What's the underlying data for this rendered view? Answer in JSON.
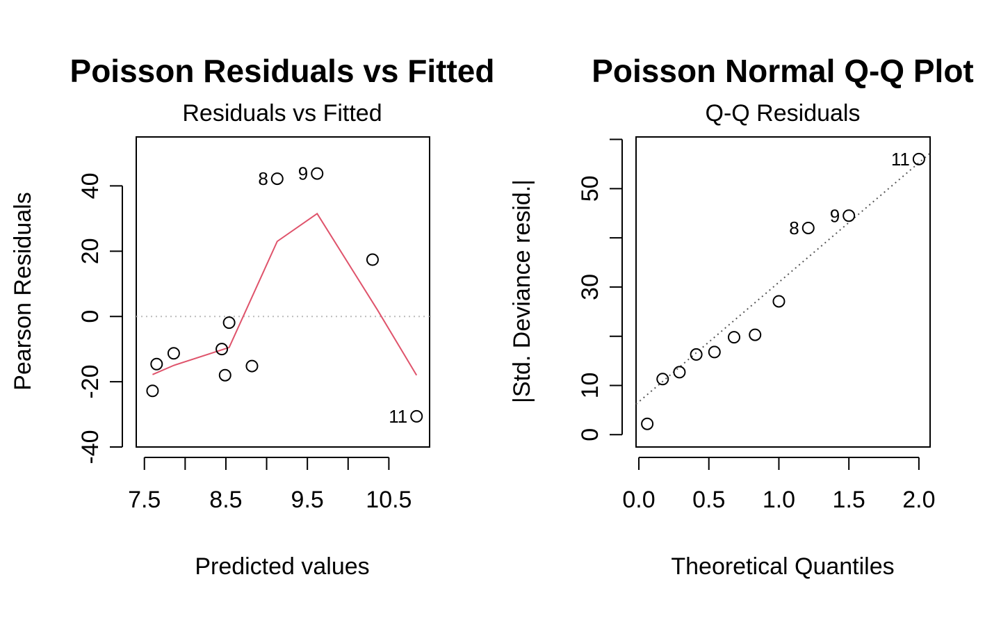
{
  "chart_data": [
    {
      "type": "scatter",
      "title": "Poisson Residuals vs Fitted",
      "subtitle": "Residuals vs Fitted",
      "xlabel": "Predicted values",
      "ylabel": "Pearson Residuals",
      "xlim": [
        7.4,
        11.0
      ],
      "ylim": [
        -40,
        55
      ],
      "xticks": [
        7.5,
        8.0,
        8.5,
        9.0,
        9.5,
        10.0,
        10.5
      ],
      "xtick_labels": [
        "7.5",
        "",
        "8.5",
        "",
        "9.5",
        "",
        "10.5"
      ],
      "yticks": [
        -40,
        -20,
        0,
        20,
        40
      ],
      "ytick_labels": [
        "-40",
        "-20",
        "0",
        "20",
        "40"
      ],
      "grid": false,
      "reference_line": {
        "y": 0,
        "style": "dotted",
        "color": "#bbbbbb"
      },
      "points": [
        {
          "x": 7.6,
          "y": -22.8,
          "label": ""
        },
        {
          "x": 7.65,
          "y": -14.6,
          "label": ""
        },
        {
          "x": 7.86,
          "y": -11.3,
          "label": ""
        },
        {
          "x": 8.45,
          "y": -10.0,
          "label": ""
        },
        {
          "x": 8.49,
          "y": -18.0,
          "label": ""
        },
        {
          "x": 8.54,
          "y": -1.9,
          "label": ""
        },
        {
          "x": 8.82,
          "y": -15.2,
          "label": ""
        },
        {
          "x": 9.13,
          "y": 42.2,
          "label": "8"
        },
        {
          "x": 9.62,
          "y": 43.8,
          "label": "9"
        },
        {
          "x": 10.3,
          "y": 17.4,
          "label": ""
        },
        {
          "x": 10.84,
          "y": -30.6,
          "label": "11"
        }
      ],
      "smooth_line": {
        "color": "#DF536B",
        "x": [
          7.6,
          7.86,
          8.54,
          9.13,
          9.62,
          10.36,
          10.84
        ],
        "y": [
          -17.8,
          -15.0,
          -9.5,
          23.0,
          31.5,
          2.0,
          -18.0
        ]
      }
    },
    {
      "type": "scatter",
      "title": "Poisson Normal Q-Q Plot",
      "subtitle": "Q-Q Residuals",
      "xlabel": "Theoretical Quantiles",
      "ylabel": "|Std. Deviance resid.|",
      "xlim": [
        -0.02,
        2.08
      ],
      "ylim": [
        -2.5,
        60.5
      ],
      "xticks": [
        0.0,
        0.5,
        1.0,
        1.5,
        2.0
      ],
      "xtick_labels": [
        "0.0",
        "0.5",
        "1.0",
        "1.5",
        "2.0"
      ],
      "yticks": [
        0,
        10,
        20,
        30,
        40,
        50,
        60
      ],
      "ytick_labels": [
        "0",
        "10",
        "",
        "30",
        "",
        "50",
        ""
      ],
      "grid": false,
      "reference_line": {
        "x": [
          -0.02,
          2.08
        ],
        "y": [
          6.2,
          57.2
        ],
        "style": "dotted",
        "color": "#555555"
      },
      "points": [
        {
          "x": 0.06,
          "y": 2.2,
          "label": ""
        },
        {
          "x": 0.17,
          "y": 11.3,
          "label": ""
        },
        {
          "x": 0.29,
          "y": 12.7,
          "label": ""
        },
        {
          "x": 0.41,
          "y": 16.3,
          "label": ""
        },
        {
          "x": 0.54,
          "y": 16.8,
          "label": ""
        },
        {
          "x": 0.68,
          "y": 19.8,
          "label": ""
        },
        {
          "x": 0.83,
          "y": 20.3,
          "label": ""
        },
        {
          "x": 1.0,
          "y": 27.1,
          "label": ""
        },
        {
          "x": 1.21,
          "y": 42.0,
          "label": "8"
        },
        {
          "x": 1.5,
          "y": 44.5,
          "label": "9"
        },
        {
          "x": 2.0,
          "y": 56.0,
          "label": "11"
        }
      ]
    }
  ]
}
